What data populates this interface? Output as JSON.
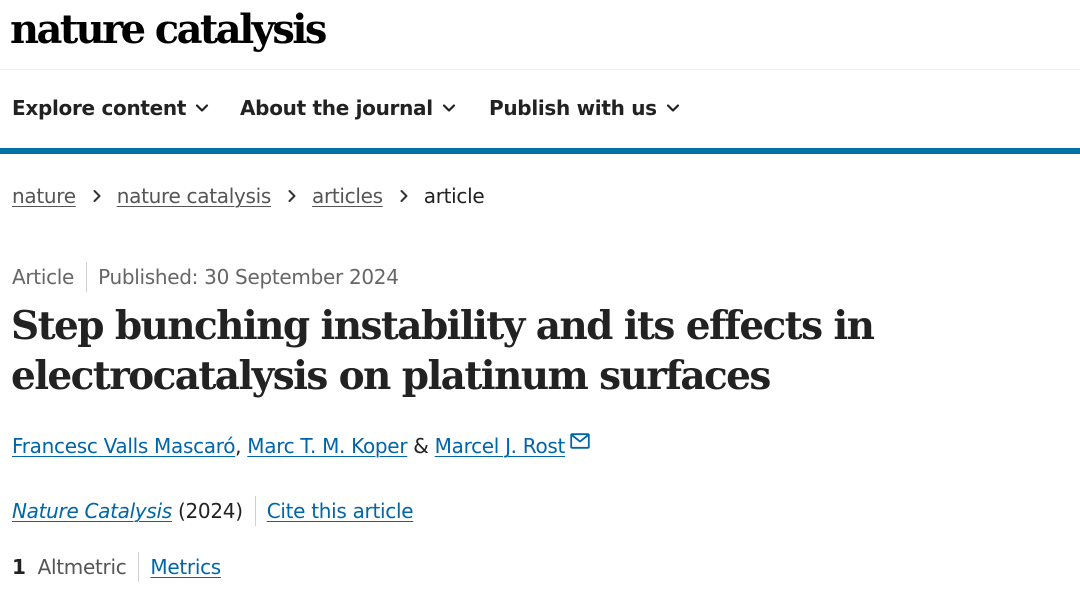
{
  "site": {
    "logo": "nature catalysis"
  },
  "nav": {
    "items": [
      {
        "label": "Explore content"
      },
      {
        "label": "About the journal"
      },
      {
        "label": "Publish with us"
      }
    ]
  },
  "breadcrumb": {
    "items": [
      {
        "label": "nature"
      },
      {
        "label": "nature catalysis"
      },
      {
        "label": "articles"
      },
      {
        "label": "article"
      }
    ]
  },
  "article": {
    "type": "Article",
    "published": "Published: 30 September 2024",
    "title": "Step bunching instability and its effects in electrocatalysis on platinum surfaces",
    "authors": [
      {
        "name": "Francesc Valls Mascaró"
      },
      {
        "name": "Marc T. M. Koper"
      },
      {
        "name": "Marcel J. Rost"
      }
    ],
    "author_separator": ", ",
    "author_conjunction": " & ",
    "journal": "Nature Catalysis",
    "year": " (2024)",
    "cite_label": "Cite this article",
    "altmetric_count": "1",
    "altmetric_label": "Altmetric",
    "metrics_label": "Metrics"
  },
  "icons": {
    "nav_dropdown": "chevron-down-icon",
    "breadcrumb_separator": "chevron-right-icon",
    "corresponding_author": "mail-icon"
  },
  "colors": {
    "link": "#0066a8",
    "nav_bar": "#0070a8",
    "text": "#222222"
  }
}
